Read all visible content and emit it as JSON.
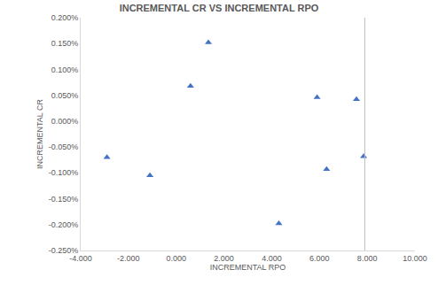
{
  "chart_data": {
    "type": "scatter",
    "title": "INCREMENTAL CR VS INCREMENTAL RPO",
    "x_label": "INCREMENTAL RPO",
    "y_label": "INCREMENTAL CR",
    "x": [
      -2.9,
      -1.1,
      0.6,
      1.35,
      4.3,
      5.9,
      6.3,
      7.55,
      7.85
    ],
    "values": [
      -0.07,
      -0.105,
      0.068,
      0.152,
      -0.198,
      0.046,
      -0.093,
      0.042,
      -0.068
    ],
    "color": "#4472c4",
    "marker": "triangle-up",
    "vertical_line_x": 7.9,
    "xlim": [
      -4,
      10
    ],
    "xticks": [
      {
        "value": -4,
        "label": "-4.000"
      },
      {
        "value": -2,
        "label": "-2.000"
      },
      {
        "value": 0,
        "label": "0.000"
      },
      {
        "value": 2,
        "label": "2.000"
      },
      {
        "value": 4,
        "label": "4.000"
      },
      {
        "value": 6,
        "label": "6.000"
      },
      {
        "value": 8,
        "label": "8.000"
      },
      {
        "value": 10,
        "label": "10.000"
      }
    ],
    "ylim": [
      -0.25,
      0.2
    ],
    "yticks": [
      {
        "value": -0.25,
        "label": "-0.250%"
      },
      {
        "value": -0.2,
        "label": "-0.200%"
      },
      {
        "value": -0.15,
        "label": "-0.150%"
      },
      {
        "value": -0.1,
        "label": "-0.100%"
      },
      {
        "value": -0.05,
        "label": "-0.050%"
      },
      {
        "value": 0,
        "label": "0.000%"
      },
      {
        "value": 0.05,
        "label": "0.050%"
      },
      {
        "value": 0.1,
        "label": "0.100%"
      },
      {
        "value": 0.15,
        "label": "0.150%"
      },
      {
        "value": 0.2,
        "label": "0.200%"
      }
    ],
    "grid": false
  }
}
